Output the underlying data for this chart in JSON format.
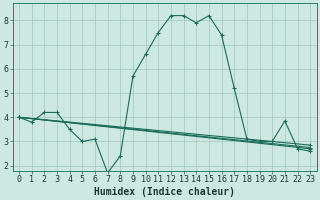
{
  "xlabel": "Humidex (Indice chaleur)",
  "ylabel": "",
  "bg_color": "#cde8e0",
  "line_color": "#1a6b5a",
  "grid_color": "#a0c8bc",
  "x_ticks": [
    0,
    1,
    2,
    3,
    4,
    5,
    6,
    7,
    8,
    9,
    10,
    11,
    12,
    13,
    14,
    15,
    16,
    17,
    18,
    19,
    20,
    21,
    22,
    23
  ],
  "y_ticks": [
    2,
    3,
    4,
    5,
    6,
    7,
    8
  ],
  "ylim": [
    1.8,
    8.7
  ],
  "xlim": [
    -0.5,
    23.5
  ],
  "series": [
    {
      "x": [
        0,
        1,
        2,
        3,
        4,
        5,
        6,
        7,
        8,
        9,
        10,
        11,
        12,
        13,
        14,
        15,
        16,
        17,
        18,
        19,
        20,
        21,
        22,
        23
      ],
      "y": [
        4.0,
        3.8,
        4.2,
        4.2,
        3.5,
        3.0,
        3.1,
        1.7,
        2.4,
        5.7,
        6.6,
        7.5,
        8.2,
        8.2,
        7.9,
        8.2,
        7.4,
        5.2,
        3.1,
        3.0,
        3.0,
        3.85,
        2.7,
        2.6
      ]
    },
    {
      "x": [
        0,
        23
      ],
      "y": [
        4.0,
        2.85
      ]
    },
    {
      "x": [
        0,
        23
      ],
      "y": [
        4.0,
        2.75
      ]
    },
    {
      "x": [
        0,
        23
      ],
      "y": [
        4.0,
        2.7
      ]
    }
  ],
  "marker": "+",
  "markersize": 3,
  "linewidth": 0.8,
  "fontsize_xlabel": 7,
  "fontsize_ticks": 6
}
